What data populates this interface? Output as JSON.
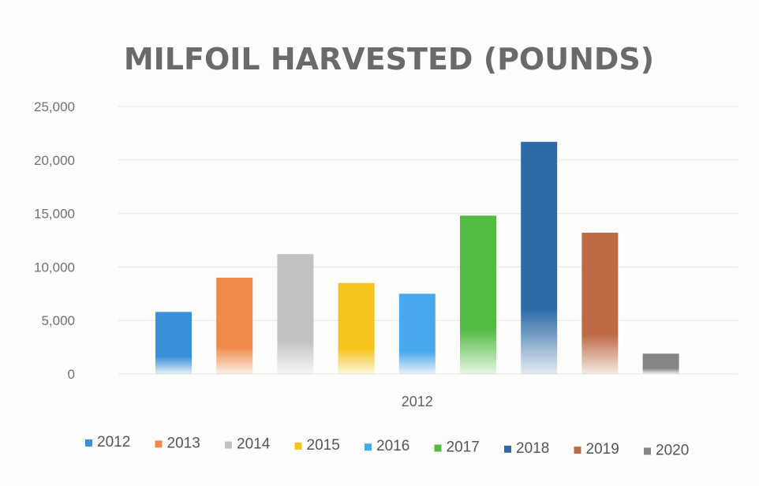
{
  "chart_data": {
    "type": "bar",
    "title": "MILFOIL HARVESTED (POUNDS)",
    "categories": [
      "2012"
    ],
    "xlabel": "",
    "ylabel": "",
    "ylim": [
      0,
      25000
    ],
    "yticks": [
      0,
      5000,
      10000,
      15000,
      20000,
      25000
    ],
    "ytick_labels": [
      "0",
      "5,000",
      "10,000",
      "15,000",
      "20,000",
      "25,000"
    ],
    "grid": true,
    "legend_position": "bottom",
    "series": [
      {
        "name": "2012",
        "values": [
          5800
        ],
        "color": "#3a8fd9"
      },
      {
        "name": "2013",
        "values": [
          9000
        ],
        "color": "#f0894a"
      },
      {
        "name": "2014",
        "values": [
          11200
        ],
        "color": "#c2c2c2"
      },
      {
        "name": "2015",
        "values": [
          8500
        ],
        "color": "#f5c41c"
      },
      {
        "name": "2016",
        "values": [
          7500
        ],
        "color": "#4aa8ec"
      },
      {
        "name": "2017",
        "values": [
          14800
        ],
        "color": "#52bb44"
      },
      {
        "name": "2018",
        "values": [
          21700
        ],
        "color": "#2c6aa8"
      },
      {
        "name": "2019",
        "values": [
          13200
        ],
        "color": "#bd6a45"
      },
      {
        "name": "2020",
        "values": [
          1900
        ],
        "color": "#858585"
      }
    ]
  }
}
